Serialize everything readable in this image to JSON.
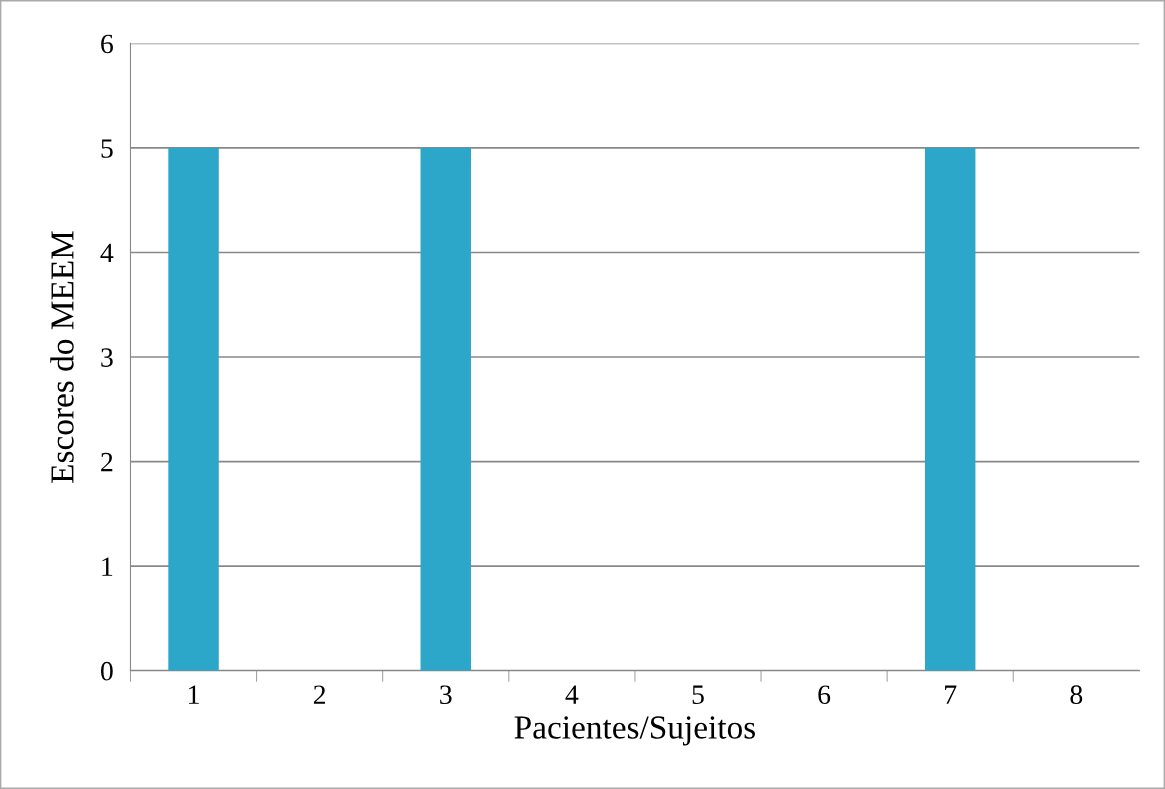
{
  "chart_data": {
    "type": "bar",
    "xlabel": "Pacientes/Sujeitos",
    "ylabel": "Escores do MEEM",
    "categories": [
      "1",
      "2",
      "3",
      "4",
      "5",
      "6",
      "7",
      "8"
    ],
    "values": [
      5,
      0,
      5,
      0,
      0,
      0,
      5,
      0
    ],
    "color": "#2ca6c9",
    "ylim": [
      0,
      6
    ],
    "yticks": [
      0,
      1,
      2,
      3,
      4,
      5,
      6
    ],
    "grid": "y"
  }
}
